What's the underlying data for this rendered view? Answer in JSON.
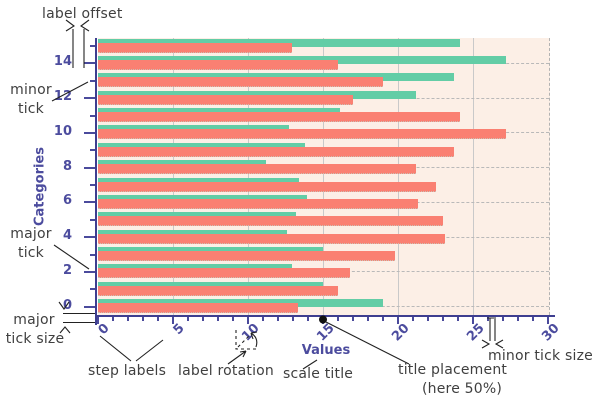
{
  "annotations": {
    "label_offset": "label offset",
    "minor_tick_l1": "minor",
    "minor_tick_l2": "tick",
    "major_tick_l1": "major",
    "major_tick_l2": "tick",
    "major_tick_size_l1": "major",
    "major_tick_size_l2": "tick size",
    "step_labels": "step labels",
    "label_rotation": "label rotation",
    "scale_title": "scale title",
    "title_placement_l1": "title placement",
    "title_placement_l2": "(here 50%)",
    "minor_tick_size": "minor tick size"
  },
  "axes": {
    "x_title": "Values",
    "y_title": "Categories",
    "x_tick_labels": [
      "0",
      "5",
      "10",
      "15",
      "20",
      "25",
      "30"
    ],
    "y_tick_labels": [
      "0",
      "2",
      "4",
      "6",
      "8",
      "10",
      "12",
      "14"
    ],
    "title_placement_percent": "50%"
  },
  "colors": {
    "red_series": "#fa8072",
    "green_series": "#63cda6",
    "plot_background": "#fcefe6",
    "axis": "#3e3e90",
    "tick_label": "#4c4c9e",
    "grid_solid": "#c9c9c9",
    "grid_dashed": "#b3b3b3",
    "annotation_text": "#3f3f3f"
  },
  "chart_data": {
    "type": "bar",
    "orientation": "horizontal",
    "title": "",
    "xlabel": "Values",
    "ylabel": "Categories",
    "xlim": [
      0,
      30
    ],
    "x_major_step": 5,
    "x_minor_step": 1,
    "grid": true,
    "categories": [
      "0",
      "1",
      "2",
      "3",
      "4",
      "5",
      "6",
      "7",
      "8",
      "9",
      "10",
      "11",
      "12",
      "13",
      "14",
      "15"
    ],
    "series": [
      {
        "name": "red",
        "color": "#fa8072",
        "values": [
          13.3,
          16.0,
          16.8,
          19.8,
          23.1,
          23.0,
          21.3,
          22.5,
          21.2,
          23.7,
          27.2,
          24.1,
          17.0,
          19.0,
          16.0,
          12.9
        ]
      },
      {
        "name": "green",
        "color": "#63cda6",
        "values": [
          19.0,
          15.0,
          12.9,
          15.0,
          12.6,
          13.2,
          13.9,
          13.4,
          11.2,
          13.8,
          12.7,
          16.1,
          21.2,
          23.7,
          27.2,
          24.1
        ]
      }
    ]
  }
}
